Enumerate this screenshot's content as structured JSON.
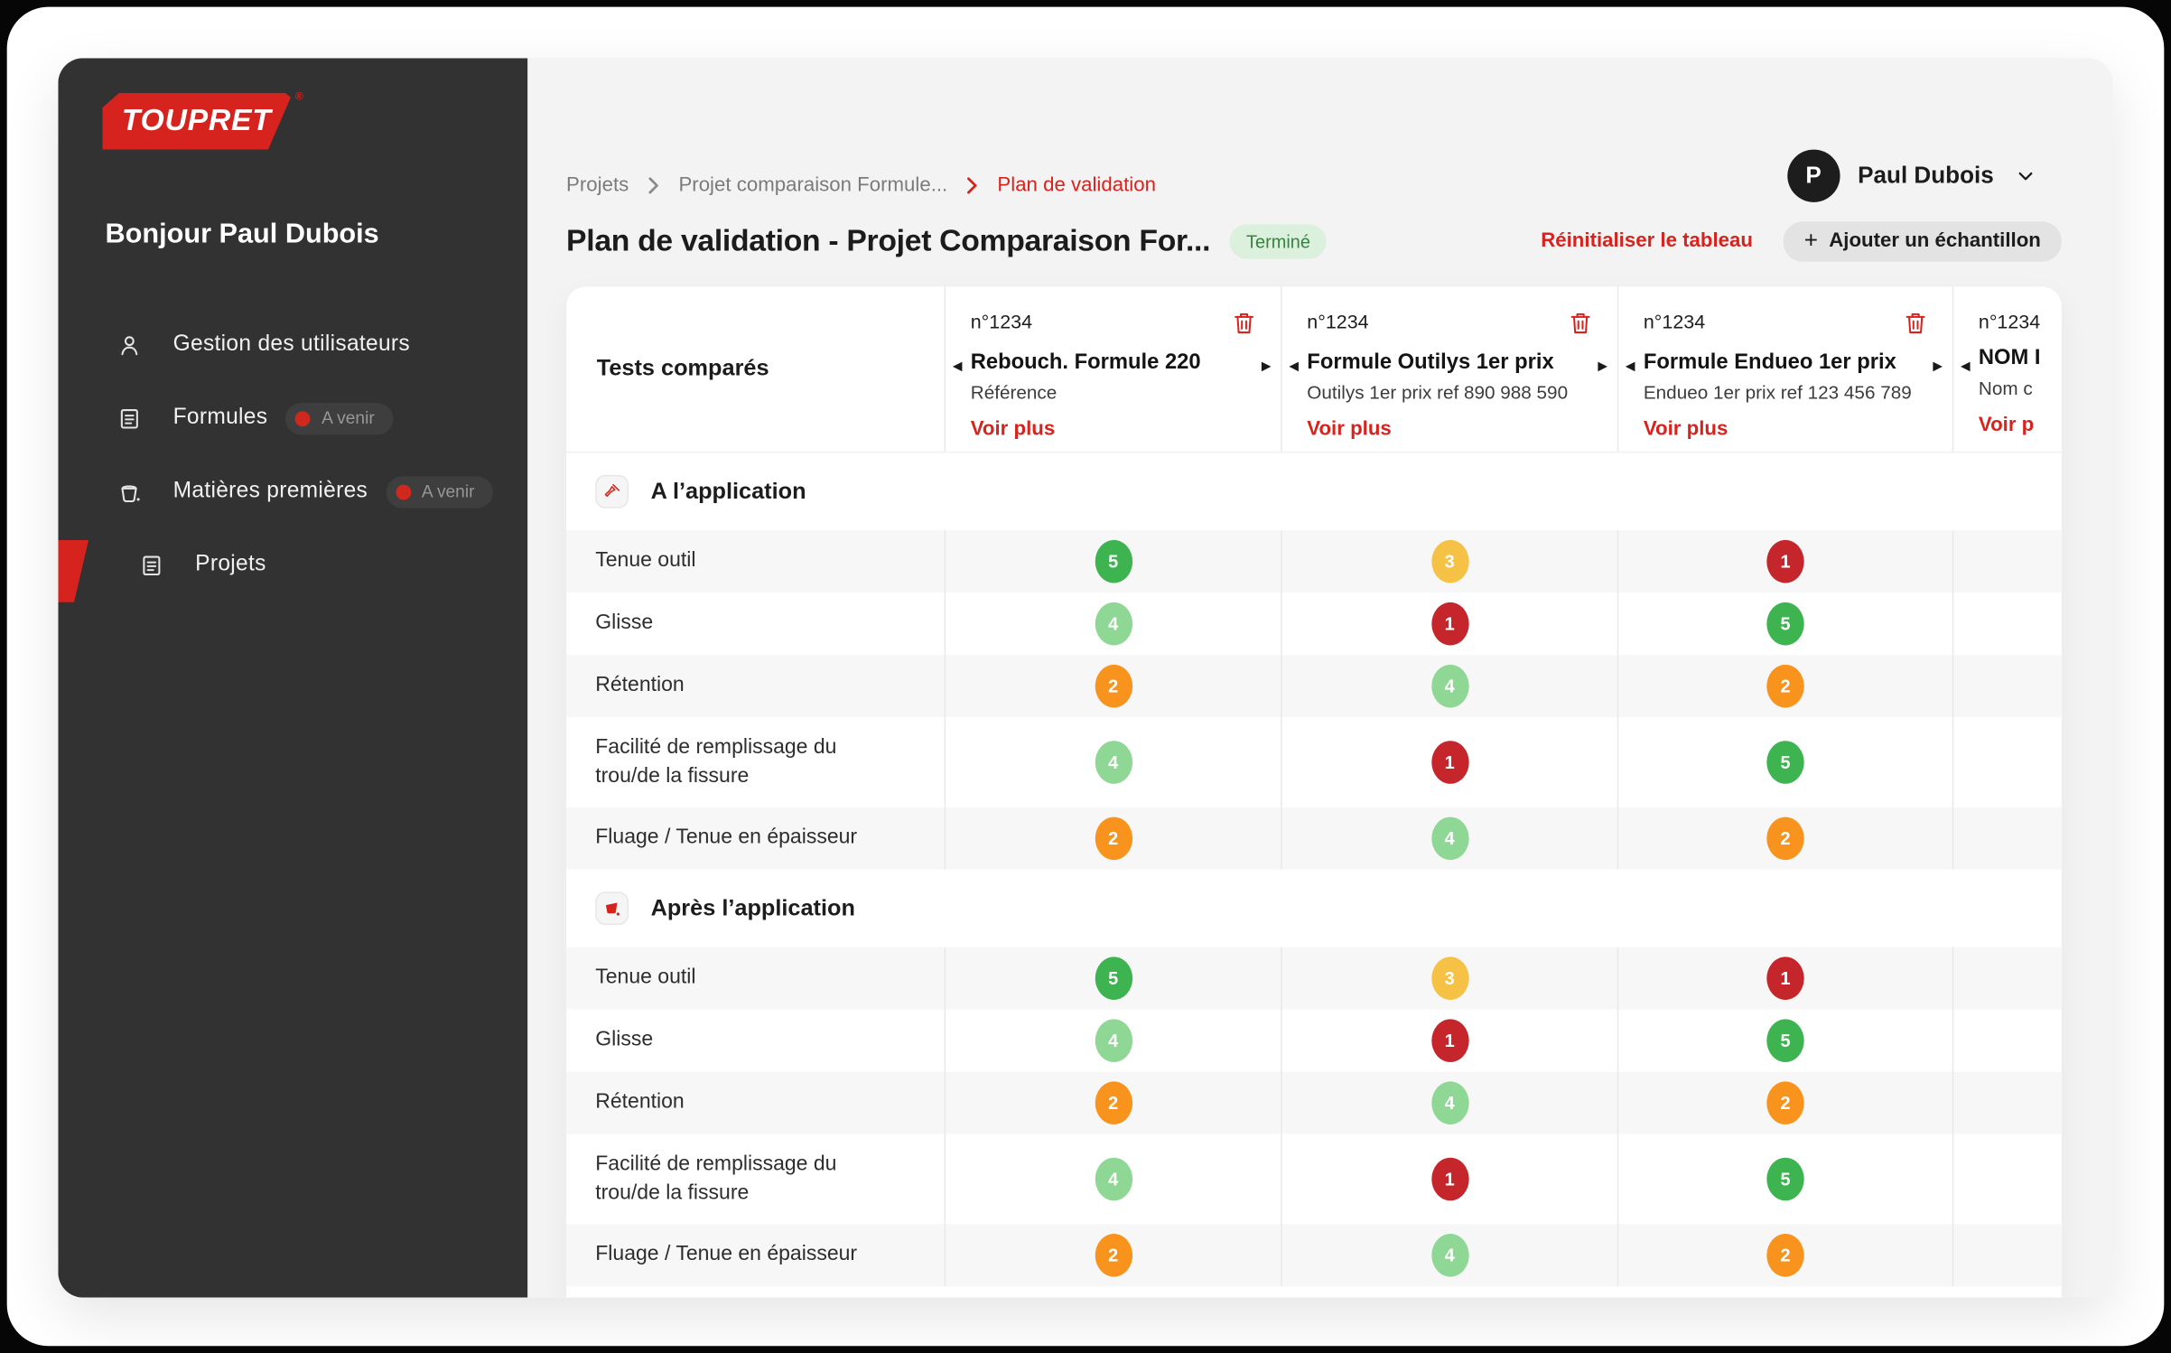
{
  "sidebar": {
    "logo_text": "TOUPRET",
    "logo_reg": "®",
    "greeting": "Bonjour Paul Dubois",
    "items": [
      {
        "label": "Gestion des utilisateurs",
        "icon": "user-icon",
        "badge": null,
        "active": false
      },
      {
        "label": "Formules",
        "icon": "document-icon",
        "badge": "A venir",
        "active": false
      },
      {
        "label": "Matières premières",
        "icon": "paint-bucket-icon",
        "badge": "A venir",
        "active": false
      },
      {
        "label": "Projets",
        "icon": "document-icon",
        "badge": null,
        "active": true
      }
    ]
  },
  "header": {
    "user_initial": "P",
    "user_name": "Paul Dubois",
    "breadcrumb": [
      {
        "label": "Projets",
        "current": false
      },
      {
        "label": "Projet comparaison Formule...",
        "current": false
      },
      {
        "label": "Plan de validation",
        "current": true
      }
    ],
    "page_title": "Plan de validation - Projet Comparaison For...",
    "status_badge": "Terminé",
    "reset_link": "Réinitialiser le tableau",
    "add_button": "Ajouter un échantillon"
  },
  "table": {
    "first_column_header": "Tests comparés",
    "voir_plus": "Voir plus",
    "samples": [
      {
        "number": "n°1234",
        "name": "Rebouch. Formule 220",
        "subtitle": "Référence",
        "clipped": false
      },
      {
        "number": "n°1234",
        "name": "Formule Outilys 1er prix",
        "subtitle": "Outilys 1er prix ref 890 988 590",
        "clipped": false
      },
      {
        "number": "n°1234",
        "name": "Formule Endueo 1er prix",
        "subtitle": "Endueo 1er prix ref 123 456 789",
        "clipped": false
      },
      {
        "number": "n°1234",
        "name": "NOM I",
        "subtitle": "Nom c",
        "voir_plus_clipped": "Voir p",
        "clipped": true
      }
    ],
    "sections": [
      {
        "title": "A l’application",
        "icon": "paint-brush-icon",
        "rows": [
          {
            "label": "Tenue outil",
            "scores": [
              5,
              3,
              1
            ]
          },
          {
            "label": "Glisse",
            "scores": [
              4,
              1,
              5
            ]
          },
          {
            "label": "Rétention",
            "scores": [
              2,
              4,
              2
            ]
          },
          {
            "label": "Facilité de remplissage du trou/de la fissure",
            "scores": [
              4,
              1,
              5
            ]
          },
          {
            "label": "Fluage / Tenue en épaisseur",
            "scores": [
              2,
              4,
              2
            ]
          }
        ]
      },
      {
        "title": "Après l’application",
        "icon": "paint-bucket-filled-icon",
        "rows": [
          {
            "label": "Tenue outil",
            "scores": [
              5,
              3,
              1
            ]
          },
          {
            "label": "Glisse",
            "scores": [
              4,
              1,
              5
            ]
          },
          {
            "label": "Rétention",
            "scores": [
              2,
              4,
              2
            ]
          },
          {
            "label": "Facilité de remplissage du trou/de la fissure",
            "scores": [
              4,
              1,
              5
            ]
          },
          {
            "label": "Fluage / Tenue en épaisseur",
            "scores": [
              2,
              4,
              2
            ]
          }
        ]
      }
    ],
    "score_colors": {
      "1": "#c4262b",
      "2": "#f8941d",
      "3": "#f6c245",
      "4": "#8fd794",
      "5": "#3eb450"
    }
  },
  "colors": {
    "brand_red": "#d6231e",
    "sidebar_bg": "#323232",
    "status_green": "#3a8142"
  }
}
